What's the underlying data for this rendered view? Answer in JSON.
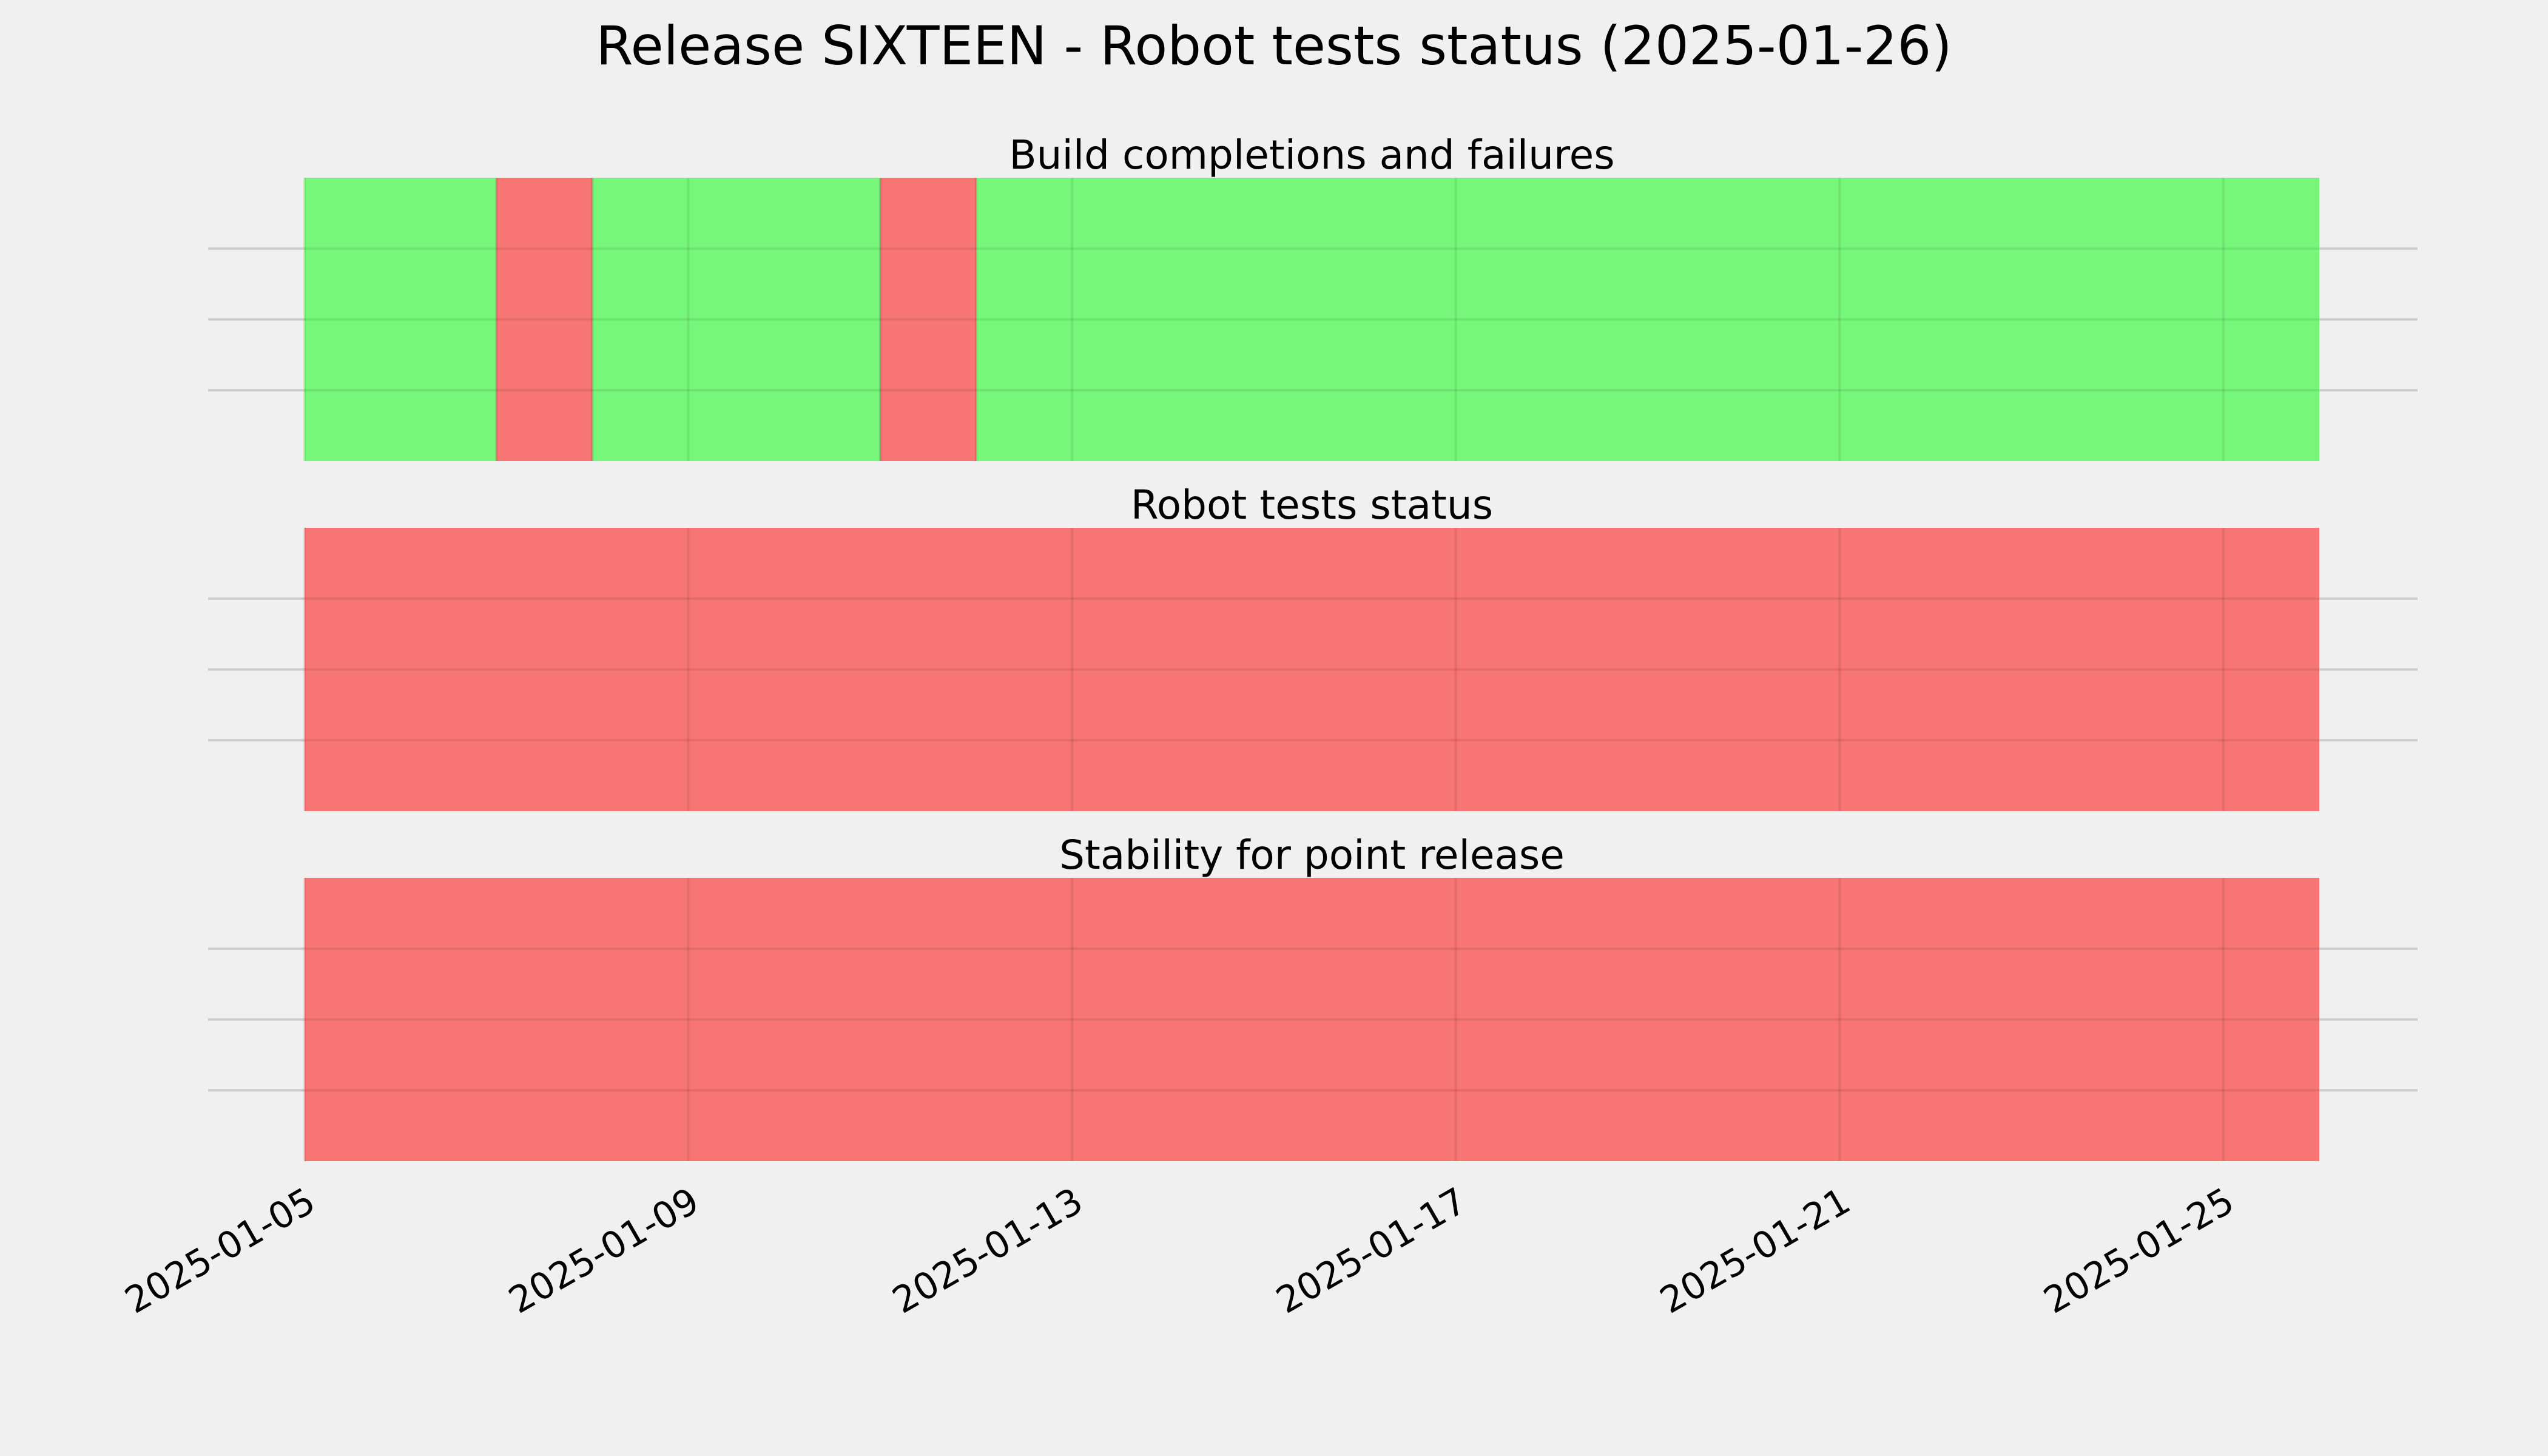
{
  "figure": {
    "title": "Release SIXTEEN - Robot tests status (2025-01-26)",
    "background": "#f0f0f0"
  },
  "colors": {
    "pass": "#77f77a",
    "fail": "#f77674",
    "grid": "#cbcbcb"
  },
  "chart_data": {
    "type": "timeline",
    "title": "Release SIXTEEN - Robot tests status (2025-01-26)",
    "x_range": [
      "2025-01-05",
      "2025-01-26"
    ],
    "x_ticks": [
      "2025-01-05",
      "2025-01-09",
      "2025-01-13",
      "2025-01-17",
      "2025-01-21",
      "2025-01-25"
    ],
    "grid": true,
    "panels": [
      {
        "title": "Build completions and failures",
        "segments": [
          {
            "start": "2025-01-05",
            "end": "2025-01-07",
            "status": "pass"
          },
          {
            "start": "2025-01-07",
            "end": "2025-01-08",
            "status": "fail"
          },
          {
            "start": "2025-01-08",
            "end": "2025-01-11",
            "status": "pass"
          },
          {
            "start": "2025-01-11",
            "end": "2025-01-12",
            "status": "fail"
          },
          {
            "start": "2025-01-12",
            "end": "2025-01-26",
            "status": "pass"
          }
        ]
      },
      {
        "title": "Robot tests status",
        "segments": [
          {
            "start": "2025-01-05",
            "end": "2025-01-26",
            "status": "fail"
          }
        ]
      },
      {
        "title": "Stability for point release",
        "segments": [
          {
            "start": "2025-01-05",
            "end": "2025-01-26",
            "status": "fail"
          }
        ]
      }
    ]
  }
}
